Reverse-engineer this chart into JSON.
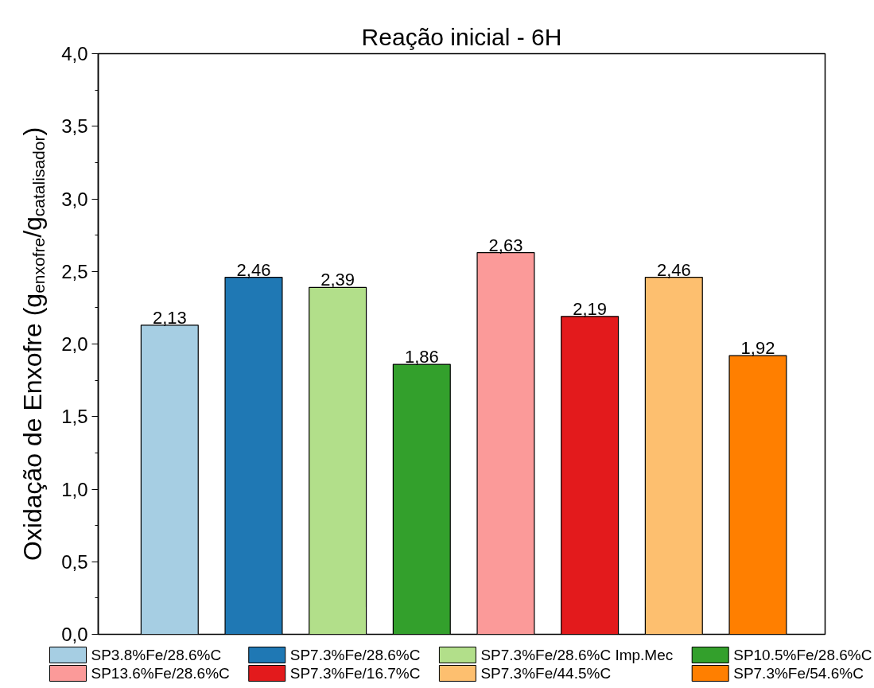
{
  "chart_data": {
    "type": "bar",
    "title": "Reação inicial - 6H",
    "ylabel": "Oxidação de Enxofre (g$_{enxofre}$/g$_{catalisador}$)",
    "categories": [
      null,
      null,
      null,
      null,
      null,
      null,
      null,
      null
    ],
    "series": [
      {
        "name": "SP3.8%Fe/28.6%C",
        "color": "#a6cee3",
        "values": [
          2.13,
          null,
          null,
          null,
          null,
          null,
          null,
          null
        ]
      },
      {
        "name": "SP7.3%Fe/28.6%C",
        "color": "#1f78b4",
        "values": [
          null,
          2.46,
          null,
          null,
          null,
          null,
          null,
          null
        ]
      },
      {
        "name": "SP7.3%Fe/28.6%C Imp.Mec",
        "color": "#b2df8a",
        "values": [
          null,
          null,
          2.39,
          null,
          null,
          null,
          null,
          null
        ]
      },
      {
        "name": "SP10.5%Fe/28.6%C",
        "color": "#33a02c",
        "values": [
          null,
          null,
          null,
          1.86,
          null,
          null,
          null,
          null
        ]
      },
      {
        "name": "SP13.6%Fe/28.6%C",
        "color": "#fb9a99",
        "values": [
          null,
          null,
          null,
          null,
          2.63,
          null,
          null,
          null
        ]
      },
      {
        "name": "SP7.3%Fe/16.7%C",
        "color": "#e31a1c",
        "values": [
          null,
          null,
          null,
          null,
          null,
          2.19,
          null,
          null
        ]
      },
      {
        "name": "SP7.3%Fe/44.5%C",
        "color": "#fdbf6f",
        "values": [
          null,
          null,
          null,
          null,
          null,
          null,
          2.46,
          null
        ]
      },
      {
        "name": "SP7.3%Fe/54.6%C",
        "color": "#ff7f00",
        "values": [
          null,
          null,
          null,
          null,
          null,
          null,
          null,
          1.92
        ]
      }
    ],
    "stacked": true,
    "value_labels": [
      "2,13",
      "2,46",
      "2,39",
      "1,86",
      "2,63",
      "2,19",
      "2,46",
      "1,92"
    ],
    "ylim": [
      0,
      4
    ],
    "yticks": [
      {
        "value": 0,
        "label": "0,0"
      },
      {
        "value": 0.5,
        "label": "0,5"
      },
      {
        "value": 1,
        "label": "1,0"
      },
      {
        "value": 1.5,
        "label": "1,5"
      },
      {
        "value": 2,
        "label": "2,0"
      },
      {
        "value": 2.5,
        "label": "2,5"
      },
      {
        "value": 3,
        "label": "3,0"
      },
      {
        "value": 3.5,
        "label": "3,5"
      },
      {
        "value": 4,
        "label": "4,0"
      }
    ],
    "grid": false,
    "legend": "bottom"
  }
}
